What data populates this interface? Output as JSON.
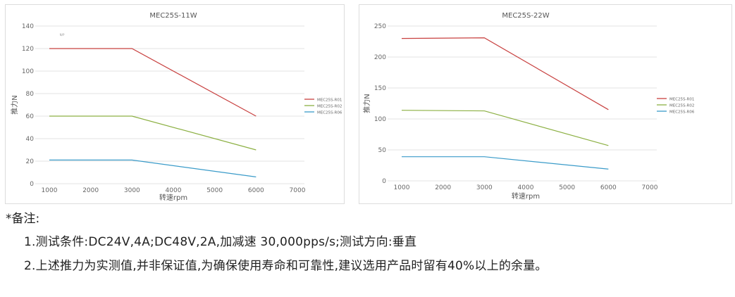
{
  "chart_data": [
    {
      "type": "line",
      "title": "MEC25S-11W",
      "xlabel": "转速rpm",
      "ylabel": "推力N",
      "xlim": [
        1000,
        7000
      ],
      "xticks": [
        1000,
        2000,
        3000,
        4000,
        5000,
        6000,
        7000
      ],
      "ylim": [
        0,
        140
      ],
      "yticks": [
        0,
        20,
        40,
        60,
        80,
        100,
        120,
        140
      ],
      "annotation": "N/P",
      "legend": "right",
      "series": [
        {
          "name": "MEC25S-R01",
          "color": "#c8403f",
          "x": [
            1000,
            3000,
            6000
          ],
          "y": [
            120,
            120,
            60
          ]
        },
        {
          "name": "MEC25S-R02",
          "color": "#8cb043",
          "x": [
            1000,
            3000,
            6000
          ],
          "y": [
            60,
            60,
            30
          ]
        },
        {
          "name": "MEC25S-R06",
          "color": "#3a9bc9",
          "x": [
            1000,
            3000,
            6000
          ],
          "y": [
            21,
            21,
            6
          ]
        }
      ]
    },
    {
      "type": "line",
      "title": "MEC25S-22W",
      "xlabel": "转速rpm",
      "ylabel": "推力N",
      "xlim": [
        1000,
        7000
      ],
      "xticks": [
        1000,
        2000,
        3000,
        4000,
        5000,
        6000,
        7000
      ],
      "ylim": [
        0,
        250
      ],
      "yticks": [
        0,
        50,
        100,
        150,
        200,
        250
      ],
      "legend": "right",
      "series": [
        {
          "name": "MEC25S-R01",
          "color": "#c8403f",
          "x": [
            1000,
            3000,
            6000
          ],
          "y": [
            230,
            231,
            115
          ]
        },
        {
          "name": "MEC25S-R02",
          "color": "#8cb043",
          "x": [
            1000,
            3000,
            6000
          ],
          "y": [
            114,
            113,
            57
          ]
        },
        {
          "name": "MEC25S-R06",
          "color": "#3a9bc9",
          "x": [
            1000,
            3000,
            6000
          ],
          "y": [
            39,
            39,
            19
          ]
        }
      ]
    }
  ],
  "notes": {
    "heading": "*备注:",
    "lines": [
      "1.测试条件:DC24V,4A;DC48V,2A,加减速 30,000pps/s;测试方向:垂直",
      "2.上述推力为实测值,并非保证值,为确保使用寿命和可靠性,建议选用产品时留有40%以上的余量。"
    ]
  }
}
